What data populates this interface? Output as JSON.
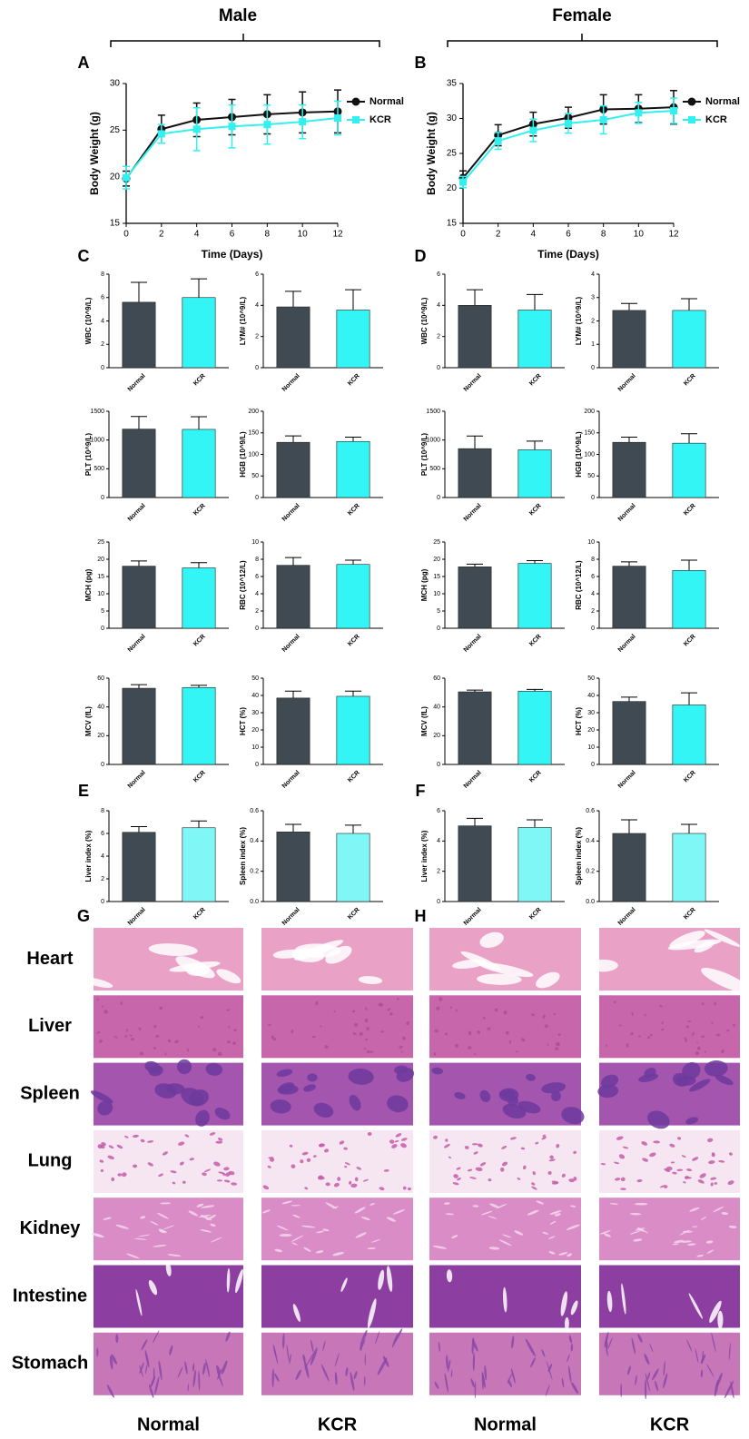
{
  "groups": [
    "Male",
    "Female"
  ],
  "panel_letters": [
    "A",
    "B",
    "C",
    "D",
    "E",
    "F",
    "G",
    "H"
  ],
  "chart_data": [
    {
      "type": "line",
      "xlabel": "Time (Days)",
      "ylabel": "Body Weight (g)",
      "x": [
        0,
        2,
        4,
        6,
        8,
        10,
        12
      ],
      "xlim": [
        0,
        12
      ],
      "xticks": [
        0,
        2,
        4,
        6,
        8,
        10,
        12
      ],
      "ylim": [
        15,
        30
      ],
      "yticks": [
        15,
        20,
        25,
        30
      ],
      "series": [
        {
          "name": "Normal",
          "color": "#111111",
          "marker": "circle",
          "values": [
            19.8,
            25.1,
            26.1,
            26.4,
            26.7,
            26.9,
            27.0
          ],
          "errors": [
            0.8,
            1.5,
            1.8,
            1.9,
            2.1,
            2.2,
            2.3
          ]
        },
        {
          "name": "KCR",
          "color": "#33f0f0",
          "marker": "square",
          "values": [
            19.9,
            24.6,
            25.1,
            25.4,
            25.6,
            25.9,
            26.3
          ],
          "errors": [
            1.2,
            1.0,
            2.3,
            2.3,
            2.1,
            1.8,
            1.8
          ]
        }
      ]
    },
    {
      "type": "line",
      "xlabel": "Time (Days)",
      "ylabel": "Body Weight (g)",
      "x": [
        0,
        2,
        4,
        6,
        8,
        10,
        12
      ],
      "xlim": [
        0,
        12
      ],
      "xticks": [
        0,
        2,
        4,
        6,
        8,
        10,
        12
      ],
      "ylim": [
        15,
        35
      ],
      "yticks": [
        15,
        20,
        25,
        30,
        35
      ],
      "series": [
        {
          "name": "Normal",
          "color": "#111111",
          "marker": "circle",
          "values": [
            21.5,
            27.6,
            29.2,
            30.1,
            31.3,
            31.4,
            31.6
          ],
          "errors": [
            1.0,
            1.5,
            1.7,
            1.5,
            2.1,
            2.0,
            2.4
          ]
        },
        {
          "name": "KCR",
          "color": "#33f0f0",
          "marker": "square",
          "values": [
            20.9,
            26.8,
            28.3,
            29.3,
            29.8,
            30.8,
            31.1
          ],
          "errors": [
            0.8,
            1.2,
            1.6,
            1.4,
            2.0,
            1.5,
            1.8
          ]
        }
      ]
    },
    {
      "type": "bar",
      "ylabel": "WBC (10^9/L)",
      "categories": [
        "Normal",
        "KCR"
      ],
      "values": [
        5.6,
        6.0
      ],
      "errors": [
        1.7,
        1.6
      ],
      "colors": [
        "#404a52",
        "#33f5f5"
      ],
      "ylim": [
        0,
        8
      ],
      "yticks": [
        0,
        2,
        4,
        6,
        8
      ]
    },
    {
      "type": "bar",
      "ylabel": "LYM# (10^9/L)",
      "categories": [
        "Normal",
        "KCR"
      ],
      "values": [
        3.9,
        3.7
      ],
      "errors": [
        1.0,
        1.3
      ],
      "colors": [
        "#404a52",
        "#33f5f5"
      ],
      "ylim": [
        0,
        6
      ],
      "yticks": [
        0,
        2,
        4,
        6
      ]
    },
    {
      "type": "bar",
      "ylabel": "PLT (10^9/L)",
      "categories": [
        "Normal",
        "KCR"
      ],
      "values": [
        1190,
        1185
      ],
      "errors": [
        220,
        220
      ],
      "colors": [
        "#404a52",
        "#33f5f5"
      ],
      "ylim": [
        0,
        1500
      ],
      "yticks": [
        0,
        500,
        1000,
        1500
      ]
    },
    {
      "type": "bar",
      "ylabel": "HGB (10^9/L)",
      "categories": [
        "Normal",
        "KCR"
      ],
      "values": [
        128,
        130
      ],
      "errors": [
        15,
        10
      ],
      "colors": [
        "#404a52",
        "#33f5f5"
      ],
      "ylim": [
        0,
        200
      ],
      "yticks": [
        0,
        50,
        100,
        150,
        200
      ]
    },
    {
      "type": "bar",
      "ylabel": "MCH (pg)",
      "categories": [
        "Normal",
        "KCR"
      ],
      "values": [
        18.0,
        17.5
      ],
      "errors": [
        1.5,
        1.5
      ],
      "colors": [
        "#404a52",
        "#33f5f5"
      ],
      "ylim": [
        0,
        25
      ],
      "yticks": [
        0,
        5,
        10,
        15,
        20,
        25
      ]
    },
    {
      "type": "bar",
      "ylabel": "RBC (10^12/L)",
      "categories": [
        "Normal",
        "KCR"
      ],
      "values": [
        7.3,
        7.4
      ],
      "errors": [
        0.9,
        0.5
      ],
      "colors": [
        "#404a52",
        "#33f5f5"
      ],
      "ylim": [
        0,
        10
      ],
      "yticks": [
        0,
        2,
        4,
        6,
        8,
        10
      ]
    },
    {
      "type": "bar",
      "ylabel": "MCV (fL)",
      "categories": [
        "Normal",
        "KCR"
      ],
      "values": [
        53,
        53.5
      ],
      "errors": [
        2.5,
        1.5
      ],
      "colors": [
        "#404a52",
        "#33f5f5"
      ],
      "ylim": [
        0,
        60
      ],
      "yticks": [
        0,
        20,
        40,
        60
      ]
    },
    {
      "type": "bar",
      "ylabel": "HCT (%)",
      "categories": [
        "Normal",
        "KCR"
      ],
      "values": [
        38.5,
        39.5
      ],
      "errors": [
        4,
        3
      ],
      "colors": [
        "#404a52",
        "#33f5f5"
      ],
      "ylim": [
        0,
        50
      ],
      "yticks": [
        0,
        10,
        20,
        30,
        40,
        50
      ]
    },
    {
      "type": "bar",
      "ylabel": "WBC (10^9/L)",
      "categories": [
        "Normal",
        "KCR"
      ],
      "values": [
        4.0,
        3.7
      ],
      "errors": [
        1.0,
        1.0
      ],
      "colors": [
        "#404a52",
        "#33f5f5"
      ],
      "ylim": [
        0,
        6
      ],
      "yticks": [
        0,
        2,
        4,
        6
      ]
    },
    {
      "type": "bar",
      "ylabel": "LYM# (10^9/L)",
      "categories": [
        "Normal",
        "KCR"
      ],
      "values": [
        2.45,
        2.45
      ],
      "errors": [
        0.3,
        0.5
      ],
      "colors": [
        "#404a52",
        "#33f5f5"
      ],
      "ylim": [
        0,
        4
      ],
      "yticks": [
        0,
        1,
        2,
        3,
        4
      ]
    },
    {
      "type": "bar",
      "ylabel": "PLT (10^9/L)",
      "categories": [
        "Normal",
        "KCR"
      ],
      "values": [
        850,
        830
      ],
      "errors": [
        220,
        150
      ],
      "colors": [
        "#404a52",
        "#33f5f5"
      ],
      "ylim": [
        0,
        1500
      ],
      "yticks": [
        0,
        500,
        1000,
        1500
      ]
    },
    {
      "type": "bar",
      "ylabel": "HGB (10^9/L)",
      "categories": [
        "Normal",
        "KCR"
      ],
      "values": [
        128,
        126
      ],
      "errors": [
        12,
        22
      ],
      "colors": [
        "#404a52",
        "#33f5f5"
      ],
      "ylim": [
        0,
        200
      ],
      "yticks": [
        0,
        50,
        100,
        150,
        200
      ]
    },
    {
      "type": "bar",
      "ylabel": "MCH (pg)",
      "categories": [
        "Normal",
        "KCR"
      ],
      "values": [
        17.8,
        18.8
      ],
      "errors": [
        0.8,
        0.8
      ],
      "colors": [
        "#404a52",
        "#33f5f5"
      ],
      "ylim": [
        0,
        25
      ],
      "yticks": [
        0,
        5,
        10,
        15,
        20,
        25
      ]
    },
    {
      "type": "bar",
      "ylabel": "RBC (10^12/L)",
      "categories": [
        "Normal",
        "KCR"
      ],
      "values": [
        7.2,
        6.7
      ],
      "errors": [
        0.5,
        1.2
      ],
      "colors": [
        "#404a52",
        "#33f5f5"
      ],
      "ylim": [
        0,
        10
      ],
      "yticks": [
        0,
        2,
        4,
        6,
        8,
        10
      ]
    },
    {
      "type": "bar",
      "ylabel": "MCV (fL)",
      "categories": [
        "Normal",
        "KCR"
      ],
      "values": [
        50.5,
        51
      ],
      "errors": [
        1.2,
        1.2
      ],
      "colors": [
        "#404a52",
        "#33f5f5"
      ],
      "ylim": [
        0,
        60
      ],
      "yticks": [
        0,
        20,
        40,
        60
      ]
    },
    {
      "type": "bar",
      "ylabel": "HCT (%)",
      "categories": [
        "Normal",
        "KCR"
      ],
      "values": [
        36.5,
        34.5
      ],
      "errors": [
        2.5,
        7
      ],
      "colors": [
        "#404a52",
        "#33f5f5"
      ],
      "ylim": [
        0,
        50
      ],
      "yticks": [
        0,
        10,
        20,
        30,
        40,
        50
      ]
    },
    {
      "type": "bar",
      "ylabel": "Liver index (%)",
      "categories": [
        "Normal",
        "KCR"
      ],
      "values": [
        6.1,
        6.5
      ],
      "errors": [
        0.5,
        0.6
      ],
      "colors": [
        "#404a52",
        "#7ff7f7"
      ],
      "ylim": [
        0,
        8
      ],
      "yticks": [
        0,
        2,
        4,
        6,
        8
      ]
    },
    {
      "type": "bar",
      "ylabel": "Spleen index (%)",
      "categories": [
        "Normal",
        "KCR"
      ],
      "values": [
        0.46,
        0.45
      ],
      "errors": [
        0.05,
        0.055
      ],
      "colors": [
        "#404a52",
        "#7ff7f7"
      ],
      "ylim": [
        0,
        0.6
      ],
      "yticks": [
        {
          "value": 0,
          "label": "0.0"
        },
        0.2,
        0.4,
        0.6
      ]
    },
    {
      "type": "bar",
      "ylabel": "Liver index (%)",
      "categories": [
        "Normal",
        "KCR"
      ],
      "values": [
        5.0,
        4.9
      ],
      "errors": [
        0.5,
        0.5
      ],
      "colors": [
        "#404a52",
        "#7ff7f7"
      ],
      "ylim": [
        0,
        6
      ],
      "yticks": [
        0,
        2,
        4,
        6
      ]
    },
    {
      "type": "bar",
      "ylabel": "Spleen index (%)",
      "categories": [
        "Normal",
        "KCR"
      ],
      "values": [
        0.45,
        0.45
      ],
      "errors": [
        0.09,
        0.06
      ],
      "colors": [
        "#404a52",
        "#7ff7f7"
      ],
      "ylim": [
        0,
        0.6
      ],
      "yticks": [
        {
          "value": 0,
          "label": "0.0"
        },
        0.2,
        0.4,
        0.6
      ]
    }
  ],
  "histology": {
    "organs": [
      "Heart",
      "Liver",
      "Spleen",
      "Lung",
      "Kidney",
      "Intestine",
      "Stomach"
    ],
    "columns": [
      "Normal",
      "KCR",
      "Normal",
      "KCR"
    ]
  }
}
